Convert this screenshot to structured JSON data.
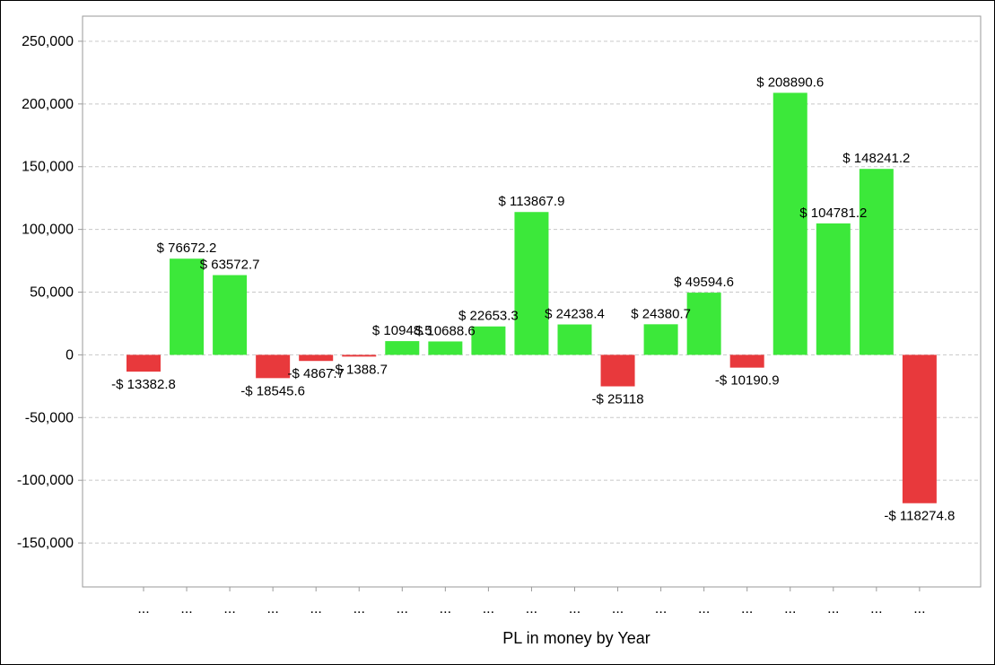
{
  "chart_data": {
    "type": "bar",
    "xlabel": "PL in money by Year",
    "ylabel": "",
    "title": "",
    "ylim": [
      -185000,
      270000
    ],
    "yticks": [
      250000,
      200000,
      150000,
      100000,
      50000,
      0,
      -50000,
      -100000,
      -150000
    ],
    "ytick_labels": [
      "250,000",
      "200,000",
      "150,000",
      "100,000",
      "50,000",
      "0",
      "-50,000",
      "-100,000",
      "-150,000"
    ],
    "grid": "horizontal dashed",
    "positive_color": "#3ce83a",
    "negative_color": "#e8393c",
    "categories": [
      "...",
      "...",
      "...",
      "...",
      "...",
      "...",
      "...",
      "...",
      "...",
      "...",
      "...",
      "...",
      "...",
      "...",
      "...",
      "...",
      "...",
      "...",
      "..."
    ],
    "values": [
      -13382.8,
      76672.2,
      63572.7,
      -18545.6,
      -4867.7,
      -1388.7,
      10948.5,
      10688.6,
      22653.3,
      113867.9,
      24238.4,
      -25118,
      24380.7,
      49594.6,
      -10190.9,
      208890.6,
      104781.2,
      148241.2,
      -118274.8
    ],
    "data_labels": [
      "-$ 13382.8",
      "$ 76672.2",
      "$ 63572.7",
      "-$ 18545.6",
      "-$ 4867.7",
      "-$ 1388.7",
      "$ 10948.5",
      "$ 10688.6",
      "$ 22653.3",
      "$ 113867.9",
      "$ 24238.4",
      "-$ 25118",
      "$ 24380.7",
      "$ 49594.6",
      "-$ 10190.9",
      "$ 208890.6",
      "$ 104781.2",
      "$ 148241.2",
      "-$ 118274.8"
    ]
  }
}
